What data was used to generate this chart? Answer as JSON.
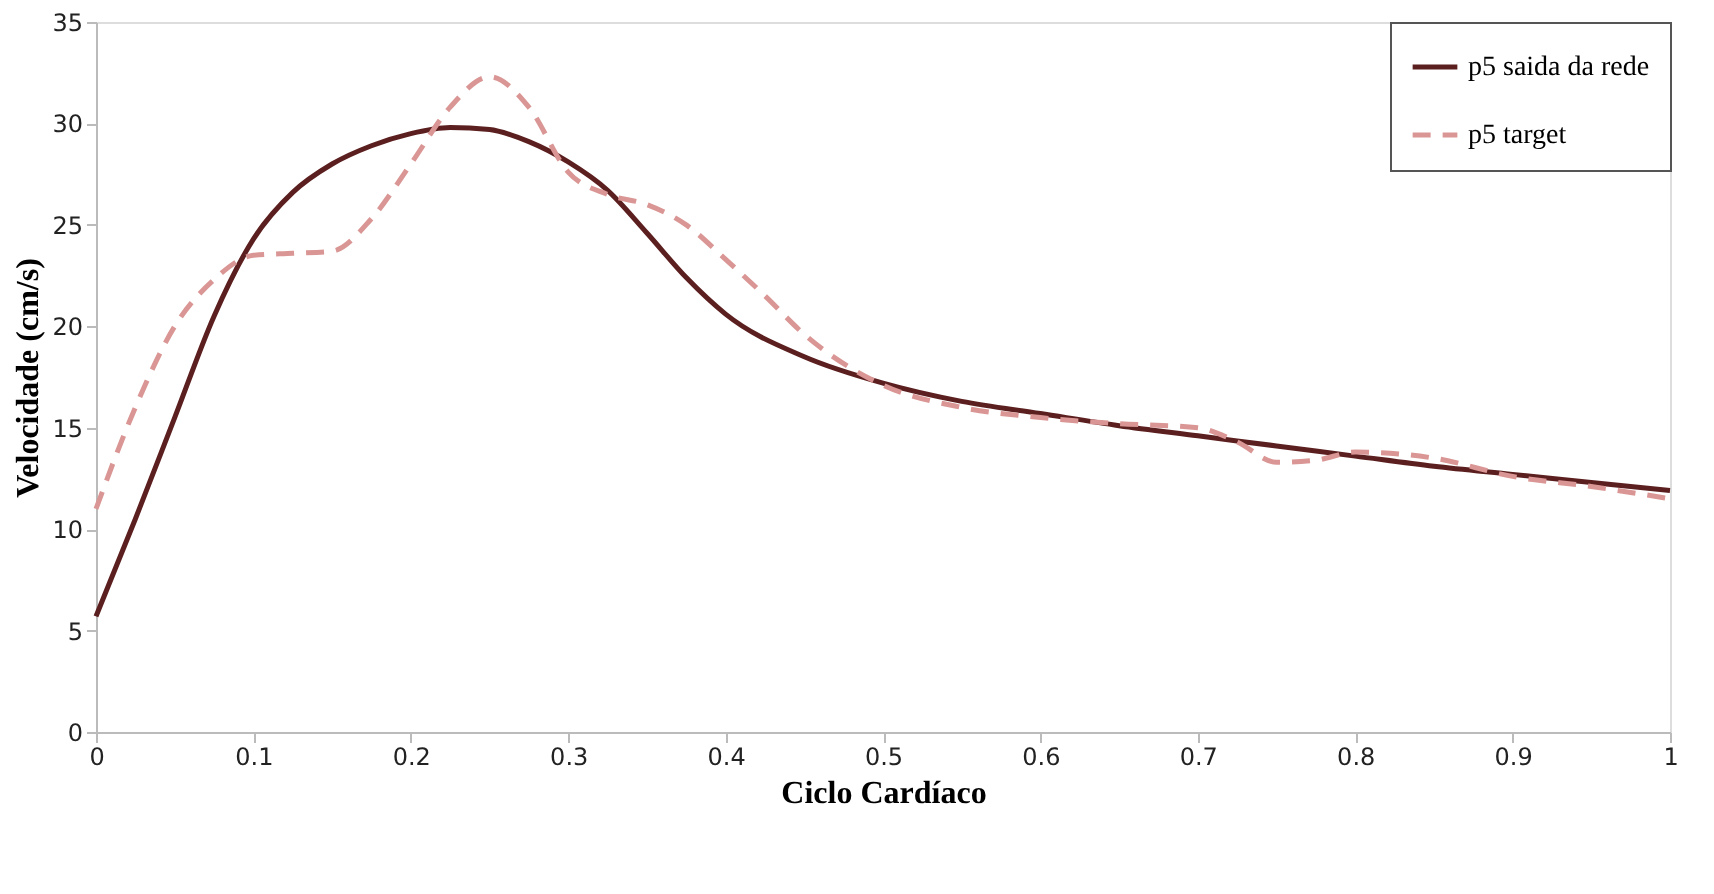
{
  "chart_data": {
    "type": "line",
    "xlabel": "Ciclo Cardíaco",
    "ylabel": "Velocidade (cm/s)",
    "xlim": [
      0,
      1
    ],
    "xticks": [
      0,
      0.1,
      0.2,
      0.3,
      0.4,
      0.5,
      0.6,
      0.7,
      0.8,
      0.9,
      1
    ],
    "ylim": [
      0,
      35
    ],
    "yticks": [
      0,
      5,
      10,
      15,
      20,
      25,
      30,
      35
    ],
    "grid": false,
    "legend": "top right",
    "marker": "none",
    "series": [
      {
        "name": "p5 saida da rede",
        "color": "#5c1f1f",
        "line_style": "solid",
        "x": [
          0,
          0.025,
          0.05,
          0.075,
          0.1,
          0.125,
          0.15,
          0.175,
          0.2,
          0.225,
          0.25,
          0.275,
          0.3,
          0.325,
          0.35,
          0.375,
          0.4,
          0.45,
          0.5,
          0.55,
          0.6,
          0.65,
          0.7,
          0.75,
          0.8,
          0.85,
          0.9,
          0.95,
          1
        ],
        "values": [
          5.7,
          10.5,
          15.5,
          20.5,
          24.3,
          26.6,
          28,
          28.9,
          29.5,
          29.8,
          29.7,
          29.1,
          28.1,
          26.7,
          24.6,
          22.4,
          20.6,
          18.5,
          17.2,
          16.3,
          15.7,
          15.1,
          14.6,
          14.1,
          13.6,
          13.1,
          12.7,
          12.3,
          11.9
        ]
      },
      {
        "name": "p5 target",
        "color": "#d99694",
        "line_style": "dashed",
        "x": [
          0,
          0.025,
          0.05,
          0.075,
          0.1,
          0.125,
          0.15,
          0.175,
          0.2,
          0.225,
          0.25,
          0.275,
          0.3,
          0.325,
          0.35,
          0.375,
          0.4,
          0.425,
          0.45,
          0.5,
          0.55,
          0.6,
          0.65,
          0.7,
          0.725,
          0.75,
          0.775,
          0.8,
          0.85,
          0.9,
          0.95,
          1
        ],
        "values": [
          11,
          16,
          20,
          22.3,
          23.5,
          23.6,
          23.7,
          25.3,
          28,
          30.8,
          32.3,
          30.8,
          27.6,
          26.5,
          26,
          25,
          23.3,
          21.5,
          19.6,
          17.1,
          16,
          15.5,
          15.2,
          15,
          14.3,
          13.3,
          13.4,
          13.8,
          13.5,
          12.6,
          12.1,
          11.5
        ]
      }
    ]
  }
}
